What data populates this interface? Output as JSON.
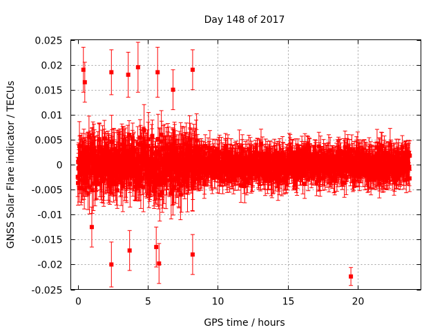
{
  "chart_data": {
    "type": "scatter",
    "title": "Day 148 of 2017",
    "xlabel": "GPS time / hours",
    "ylabel": "GNSS Solar Flare indicator / TECUs",
    "xlim": [
      -0.5,
      24.5
    ],
    "ylim": [
      -0.025,
      0.025
    ],
    "xticks": [
      0,
      5,
      10,
      15,
      20
    ],
    "xtick_labels": [
      "0",
      "5",
      "10",
      "15",
      "20"
    ],
    "yticks": [
      -0.025,
      -0.02,
      -0.015,
      -0.01,
      -0.005,
      0,
      0.005,
      0.01,
      0.015,
      0.02,
      0.025
    ],
    "ytick_labels": [
      "-0.025",
      "-0.02",
      "-0.015",
      "-0.01",
      "-0.005",
      "0",
      "0.005",
      "0.01",
      "0.015",
      "0.02",
      "0.025"
    ],
    "grid": true,
    "legend": "none",
    "color": "#ff0000",
    "series": [
      {
        "marker": "square",
        "errorbars": true,
        "segments": [
          {
            "x_start": 0.0,
            "x_end": 8.5,
            "y_center": 0.0,
            "y_spread": 0.0085,
            "error": 0.0045
          },
          {
            "x_start": 8.5,
            "x_end": 14.0,
            "y_center": 0.0,
            "y_spread": 0.0055,
            "error": 0.003
          },
          {
            "x_start": 14.0,
            "x_end": 23.7,
            "y_center": 0.0,
            "y_spread": 0.0055,
            "error": 0.003
          }
        ],
        "outliers": [
          {
            "x": 0.4,
            "y": 0.019,
            "error": 0.0045
          },
          {
            "x": 0.5,
            "y": 0.0165,
            "error": 0.004
          },
          {
            "x": 2.4,
            "y": 0.0185,
            "error": 0.0045
          },
          {
            "x": 2.4,
            "y": -0.02,
            "error": 0.0045
          },
          {
            "x": 3.6,
            "y": 0.018,
            "error": 0.0045
          },
          {
            "x": 3.7,
            "y": -0.0172,
            "error": 0.004
          },
          {
            "x": 4.3,
            "y": 0.0195,
            "error": 0.005
          },
          {
            "x": 5.7,
            "y": 0.0185,
            "error": 0.005
          },
          {
            "x": 5.8,
            "y": -0.0198,
            "error": 0.004
          },
          {
            "x": 5.6,
            "y": -0.0165,
            "error": 0.004
          },
          {
            "x": 8.2,
            "y": 0.019,
            "error": 0.004
          },
          {
            "x": 8.2,
            "y": -0.018,
            "error": 0.004
          },
          {
            "x": 6.8,
            "y": 0.015,
            "error": 0.004
          },
          {
            "x": 1.0,
            "y": -0.0125,
            "error": 0.004
          },
          {
            "x": 19.5,
            "y": -0.0224,
            "error": 0.0018
          }
        ]
      }
    ]
  }
}
